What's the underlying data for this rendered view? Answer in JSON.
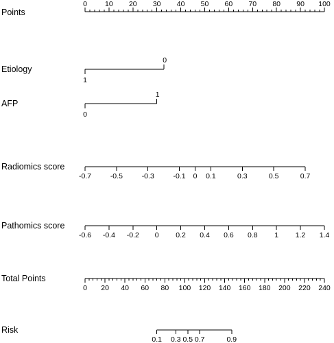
{
  "chart_data": {
    "type": "nomogram",
    "rows": [
      {
        "name": "Points",
        "range": [
          0,
          100
        ],
        "ticks": [
          0,
          10,
          20,
          30,
          40,
          50,
          60,
          70,
          80,
          90,
          100
        ],
        "tick_labels": [
          "0",
          "10",
          "20",
          "30",
          "40",
          "50",
          "60",
          "70",
          "80",
          "90",
          "100"
        ],
        "minor_ticks": [
          2,
          4,
          6,
          8,
          12,
          14,
          16,
          18,
          22,
          24,
          26,
          28,
          32,
          34,
          36,
          38,
          42,
          44,
          46,
          48,
          52,
          54,
          56,
          58,
          62,
          64,
          66,
          68,
          72,
          74,
          76,
          78,
          82,
          84,
          86,
          88,
          92,
          94,
          96,
          98
        ],
        "labels_position": "above",
        "points_range": [
          0,
          100
        ]
      },
      {
        "name": "Etiology",
        "type": "categorical",
        "categories": [
          "1",
          "0"
        ],
        "category_points": [
          0,
          33
        ]
      },
      {
        "name": "AFP",
        "type": "categorical",
        "categories": [
          "0",
          "1"
        ],
        "category_points": [
          0,
          30
        ]
      },
      {
        "name": "Radiomics  score",
        "ticks": [
          -0.7,
          -0.5,
          -0.3,
          -0.1,
          0,
          0.1,
          0.3,
          0.5,
          0.7
        ],
        "tick_labels": [
          "-0.7",
          "-0.5",
          "-0.3",
          "-0.1",
          "0",
          "0.1",
          "0.3",
          "0.5",
          "0.7"
        ],
        "range": [
          -0.7,
          0.7
        ],
        "points_range": [
          0,
          92
        ]
      },
      {
        "name": "Pathomics  score",
        "ticks": [
          -0.6,
          -0.4,
          -0.2,
          0,
          0.2,
          0.4,
          0.6,
          0.8,
          1,
          1.2,
          1.4
        ],
        "tick_labels": [
          "-0.6",
          "-0.4",
          "-0.2",
          "0",
          "0.2",
          "0.4",
          "0.6",
          "0.8",
          "1",
          "1.2",
          "1.4"
        ],
        "range": [
          -0.6,
          1.4
        ],
        "points_range": [
          0,
          100
        ]
      },
      {
        "name": "Total Points",
        "range": [
          0,
          240
        ],
        "ticks": [
          0,
          20,
          40,
          60,
          80,
          100,
          120,
          140,
          160,
          180,
          200,
          220,
          240
        ],
        "tick_labels": [
          "0",
          "20",
          "40",
          "60",
          "80",
          "100",
          "120",
          "140",
          "160",
          "180",
          "200",
          "220",
          "240"
        ],
        "minor_ticks": [
          4,
          8,
          12,
          16,
          24,
          28,
          32,
          36,
          44,
          48,
          52,
          56,
          64,
          68,
          72,
          76,
          84,
          88,
          92,
          96,
          104,
          108,
          112,
          116,
          124,
          128,
          132,
          136,
          144,
          148,
          152,
          156,
          164,
          168,
          172,
          176,
          184,
          188,
          192,
          196,
          204,
          208,
          212,
          216,
          224,
          228,
          232,
          236
        ]
      },
      {
        "name": "Risk",
        "ticks": [
          0.1,
          0.3,
          0.5,
          0.7,
          0.9
        ],
        "tick_labels": [
          "0.1",
          "0.3",
          "0.5",
          "0.7",
          "0.9"
        ],
        "total_points": [
          72,
          91,
          103,
          115,
          147
        ]
      }
    ]
  }
}
